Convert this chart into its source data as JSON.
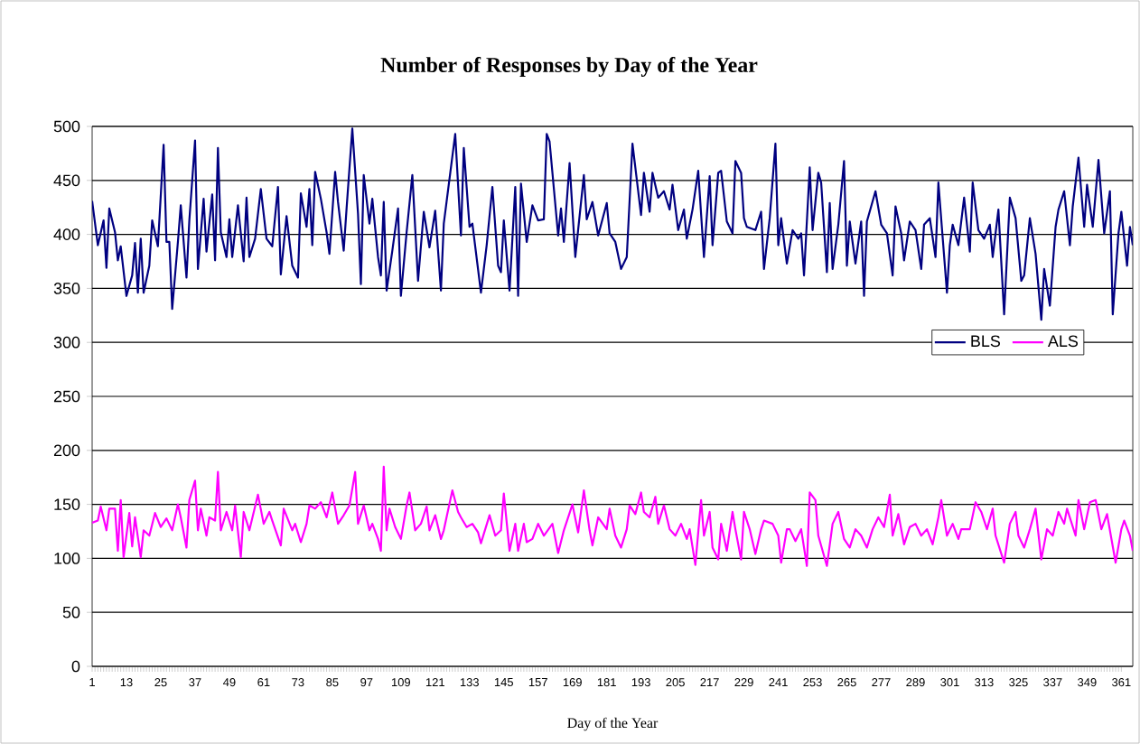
{
  "chart_data": {
    "type": "line",
    "title": "Number of Responses by Day of the Year",
    "xlabel": "Day of the Year",
    "xlim": [
      1,
      365
    ],
    "xticks": [
      1,
      13,
      25,
      37,
      49,
      61,
      73,
      85,
      97,
      109,
      121,
      133,
      145,
      157,
      169,
      181,
      193,
      205,
      217,
      229,
      241,
      253,
      265,
      277,
      289,
      301,
      313,
      325,
      337,
      349,
      361
    ],
    "ylim": [
      0,
      500
    ],
    "yticks": [
      0,
      50,
      100,
      150,
      200,
      250,
      300,
      350,
      400,
      450,
      500
    ],
    "grid": "y",
    "legend": "right",
    "marker": "none",
    "line_style": "solid",
    "series": [
      {
        "name": "BLS",
        "color": "#000080",
        "x": [
          1,
          3,
          5,
          6,
          7,
          9,
          10,
          11,
          13,
          15,
          16,
          17,
          18,
          19,
          21,
          22,
          24,
          26,
          27,
          28,
          29,
          31,
          32,
          34,
          35,
          37,
          38,
          40,
          41,
          43,
          44,
          45,
          46,
          48,
          49,
          50,
          52,
          54,
          55,
          56,
          58,
          60,
          62,
          64,
          66,
          67,
          69,
          71,
          73,
          74,
          76,
          77,
          78,
          79,
          81,
          83,
          84,
          86,
          87,
          89,
          90,
          92,
          94,
          95,
          96,
          98,
          99,
          101,
          102,
          103,
          104,
          106,
          108,
          109,
          111,
          113,
          115,
          117,
          119,
          121,
          123,
          124,
          128,
          130,
          131,
          133,
          134,
          137,
          139,
          141,
          143,
          144,
          145,
          147,
          149,
          150,
          151,
          153,
          155,
          157,
          159,
          160,
          161,
          164,
          165,
          166,
          168,
          170,
          173,
          174,
          176,
          178,
          181,
          182,
          184,
          186,
          188,
          190,
          193,
          194,
          196,
          197,
          199,
          201,
          203,
          204,
          206,
          208,
          209,
          211,
          213,
          215,
          217,
          218,
          220,
          221,
          223,
          225,
          226,
          228,
          229,
          230,
          233,
          235,
          236,
          238,
          240,
          241,
          242,
          244,
          246,
          248,
          249,
          250,
          252,
          253,
          255,
          256,
          258,
          259,
          260,
          262,
          264,
          265,
          266,
          268,
          270,
          271,
          272,
          275,
          277,
          279,
          281,
          282,
          284,
          285,
          287,
          289,
          291,
          292,
          294,
          296,
          297,
          300,
          301,
          302,
          304,
          306,
          308,
          309,
          311,
          313,
          315,
          316,
          318,
          320,
          322,
          324,
          326,
          327,
          329,
          331,
          333,
          334,
          336,
          338,
          339,
          341,
          343,
          344,
          346,
          348,
          349,
          351,
          353,
          355,
          357,
          358,
          360,
          361,
          363,
          364,
          365
        ],
        "values": [
          431,
          390,
          413,
          369,
          424,
          402,
          376,
          389,
          343,
          362,
          392,
          346,
          396,
          346,
          371,
          413,
          389,
          483,
          393,
          393,
          331,
          393,
          427,
          360,
          413,
          487,
          368,
          433,
          384,
          437,
          376,
          480,
          402,
          379,
          414,
          379,
          427,
          375,
          434,
          379,
          396,
          442,
          396,
          389,
          444,
          363,
          417,
          371,
          360,
          438,
          407,
          442,
          390,
          458,
          433,
          402,
          382,
          458,
          430,
          385,
          424,
          498,
          419,
          354,
          455,
          410,
          433,
          379,
          362,
          430,
          348,
          385,
          424,
          343,
          402,
          455,
          357,
          421,
          388,
          422,
          348,
          410,
          493,
          399,
          480,
          407,
          410,
          346,
          390,
          444,
          371,
          365,
          413,
          348,
          444,
          343,
          447,
          393,
          427,
          413,
          414,
          493,
          486,
          399,
          424,
          393,
          466,
          379,
          455,
          414,
          430,
          399,
          429,
          401,
          393,
          368,
          379,
          484,
          418,
          457,
          421,
          457,
          434,
          440,
          423,
          446,
          404,
          423,
          396,
          423,
          459,
          379,
          454,
          390,
          457,
          459,
          412,
          401,
          468,
          457,
          415,
          407,
          404,
          421,
          368,
          415,
          484,
          390,
          415,
          373,
          404,
          396,
          401,
          362,
          462,
          404,
          457,
          448,
          365,
          429,
          368,
          409,
          468,
          371,
          412,
          373,
          412,
          343,
          412,
          440,
          409,
          401,
          362,
          426,
          401,
          376,
          412,
          404,
          368,
          409,
          415,
          379,
          448,
          346,
          390,
          409,
          390,
          434,
          384,
          448,
          404,
          396,
          409,
          379,
          423,
          326,
          434,
          415,
          357,
          362,
          415,
          382,
          321,
          368,
          334,
          407,
          423,
          440,
          390,
          426,
          471,
          407,
          446,
          407,
          469,
          401,
          440,
          326,
          401,
          421,
          371,
          407,
          390
        ]
      },
      {
        "name": "ALS",
        "color": "#ff00ff",
        "x": [
          1,
          3,
          4,
          6,
          7,
          9,
          10,
          11,
          12,
          14,
          15,
          16,
          18,
          19,
          21,
          23,
          25,
          27,
          29,
          31,
          32,
          34,
          35,
          37,
          38,
          39,
          41,
          42,
          44,
          45,
          46,
          48,
          50,
          51,
          53,
          54,
          56,
          59,
          61,
          63,
          64,
          67,
          68,
          71,
          72,
          74,
          76,
          77,
          79,
          81,
          83,
          85,
          87,
          89,
          91,
          93,
          94,
          96,
          98,
          99,
          101,
          102,
          103,
          104,
          105,
          107,
          109,
          111,
          112,
          114,
          116,
          118,
          119,
          121,
          123,
          124,
          127,
          129,
          130,
          132,
          134,
          136,
          137,
          140,
          142,
          144,
          145,
          147,
          149,
          150,
          152,
          153,
          155,
          157,
          159,
          162,
          164,
          166,
          169,
          171,
          173,
          175,
          176,
          178,
          181,
          182,
          184,
          186,
          188,
          189,
          191,
          193,
          194,
          196,
          198,
          199,
          201,
          203,
          205,
          207,
          209,
          210,
          212,
          214,
          215,
          217,
          218,
          220,
          221,
          223,
          225,
          226,
          228,
          229,
          231,
          233,
          235,
          236,
          239,
          241,
          242,
          244,
          245,
          247,
          249,
          251,
          252,
          254,
          255,
          258,
          260,
          262,
          264,
          266,
          268,
          270,
          272,
          274,
          276,
          278,
          280,
          281,
          283,
          285,
          287,
          289,
          291,
          293,
          295,
          297,
          298,
          300,
          302,
          304,
          305,
          308,
          310,
          312,
          314,
          316,
          317,
          320,
          322,
          324,
          325,
          327,
          329,
          331,
          333,
          335,
          337,
          339,
          341,
          342,
          345,
          346,
          348,
          350,
          352,
          354,
          356,
          359,
          361,
          362,
          364,
          365
        ],
        "values": [
          133,
          135,
          148,
          126,
          146,
          146,
          107,
          154,
          101,
          142,
          111,
          138,
          101,
          126,
          121,
          142,
          129,
          137,
          126,
          150,
          138,
          110,
          154,
          172,
          126,
          146,
          121,
          138,
          135,
          180,
          126,
          143,
          126,
          149,
          101,
          143,
          126,
          159,
          132,
          143,
          135,
          112,
          146,
          126,
          132,
          115,
          132,
          149,
          146,
          152,
          138,
          161,
          132,
          140,
          149,
          180,
          132,
          149,
          126,
          132,
          118,
          107,
          185,
          126,
          146,
          129,
          118,
          149,
          161,
          126,
          132,
          148,
          126,
          140,
          118,
          126,
          163,
          143,
          138,
          129,
          132,
          124,
          114,
          140,
          121,
          126,
          160,
          107,
          132,
          107,
          132,
          115,
          118,
          132,
          121,
          132,
          105,
          126,
          150,
          124,
          163,
          126,
          112,
          138,
          127,
          146,
          121,
          110,
          127,
          149,
          141,
          161,
          143,
          138,
          157,
          132,
          149,
          127,
          121,
          132,
          118,
          127,
          94,
          154,
          121,
          143,
          110,
          99,
          132,
          107,
          143,
          127,
          99,
          143,
          127,
          104,
          127,
          135,
          132,
          121,
          96,
          127,
          127,
          116,
          127,
          93,
          161,
          154,
          121,
          93,
          132,
          143,
          118,
          110,
          127,
          121,
          110,
          127,
          138,
          129,
          159,
          121,
          141,
          113,
          129,
          132,
          121,
          127,
          113,
          138,
          154,
          121,
          132,
          118,
          127,
          127,
          152,
          143,
          127,
          146,
          121,
          96,
          132,
          143,
          121,
          110,
          127,
          146,
          99,
          127,
          121,
          143,
          132,
          146,
          121,
          154,
          127,
          152,
          154,
          127,
          141,
          96,
          127,
          135,
          121,
          107
        ]
      }
    ]
  }
}
